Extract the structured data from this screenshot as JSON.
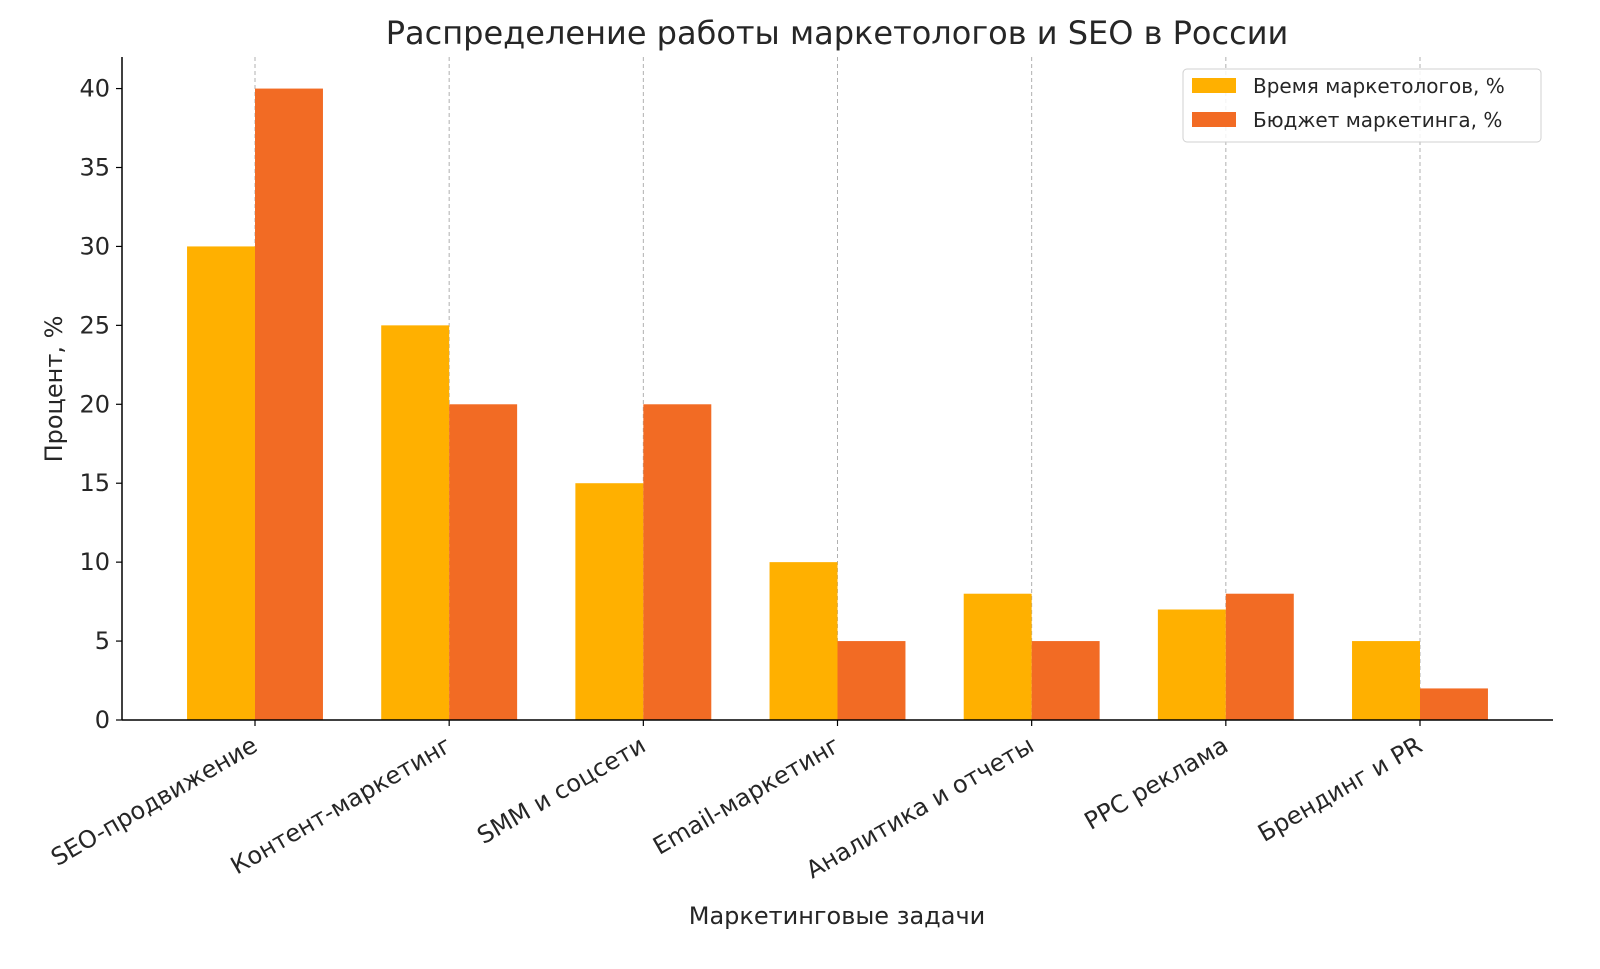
{
  "chart_data": {
    "type": "bar",
    "title": "Распределение работы маркетологов и SEO в России",
    "xlabel": "Маркетинговые задачи",
    "ylabel": "Процент, %",
    "categories": [
      "SEO-продвижение",
      "Контент-маркетинг",
      "SMM и соцсети",
      "Email-маркетинг",
      "Аналитика и отчеты",
      "PPC реклама",
      "Брендинг и PR"
    ],
    "series": [
      {
        "name": "Время маркетологов, %",
        "color": "#FFB000",
        "values": [
          30,
          25,
          15,
          10,
          8,
          7,
          5
        ]
      },
      {
        "name": "Бюджет маркетинга, %",
        "color": "#F26B24",
        "values": [
          40,
          20,
          20,
          5,
          5,
          8,
          2
        ]
      }
    ],
    "ylim": [
      0,
      42
    ],
    "yticks": [
      0,
      5,
      10,
      15,
      20,
      25,
      30,
      35,
      40
    ],
    "grid": "vertical dashed at categories",
    "legend": "top-right"
  }
}
